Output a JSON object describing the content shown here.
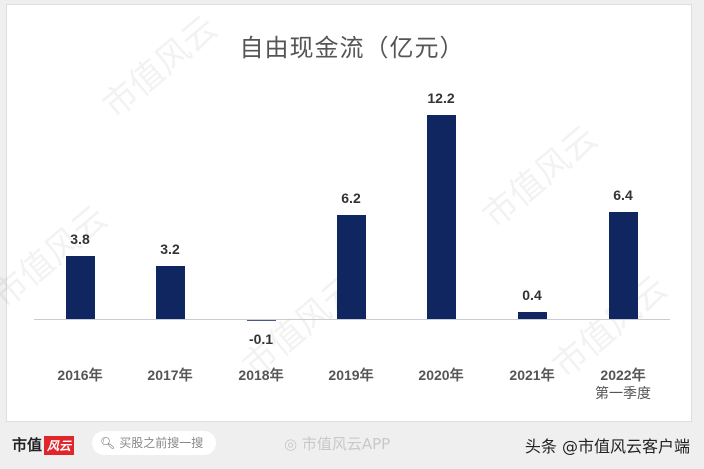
{
  "chart_data": {
    "type": "bar",
    "title": "自由现金流（亿元）",
    "categories": [
      "2016年",
      "2017年",
      "2018年",
      "2019年",
      "2020年",
      "2021年",
      "2022年第一季度"
    ],
    "values": [
      3.8,
      3.2,
      -0.1,
      6.2,
      12.2,
      0.4,
      6.4
    ],
    "data_labels": [
      "3.8",
      "3.2",
      "-0.1",
      "6.2",
      "12.2",
      "0.4",
      "6.4"
    ],
    "xlabel": "",
    "ylabel": "",
    "bar_color": "#0f2660",
    "grid": false,
    "legend": null
  },
  "chart": {
    "title": "自由现金流（亿元）",
    "x_labels": [
      {
        "line1": "2016年",
        "line2": ""
      },
      {
        "line1": "2017年",
        "line2": ""
      },
      {
        "line1": "2018年",
        "line2": ""
      },
      {
        "line1": "2019年",
        "line2": ""
      },
      {
        "line1": "2020年",
        "line2": ""
      },
      {
        "line1": "2021年",
        "line2": ""
      },
      {
        "line1": "2022年",
        "line2": "第一季度"
      }
    ]
  },
  "watermark": "市值风云",
  "footer": {
    "brand": "市值",
    "brand_logo": "风云",
    "search_placeholder": "买股之前搜一搜",
    "weibo": "市值风云APP",
    "toutiao": "头条 @市值风云客户端"
  }
}
